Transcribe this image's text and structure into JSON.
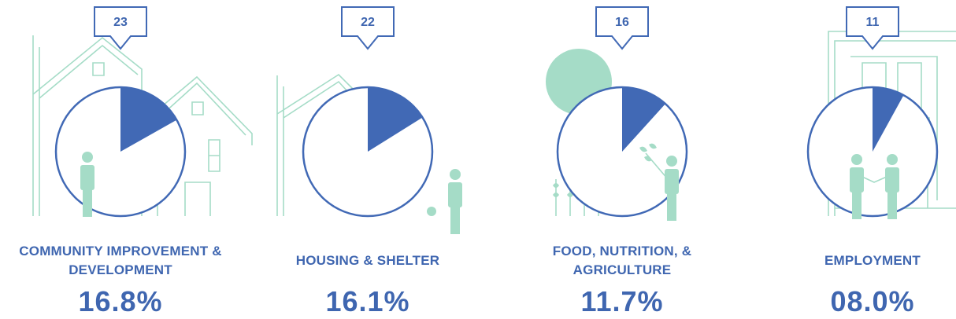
{
  "chart_data": {
    "type": "pie",
    "categories": [
      "COMMUNITY IMPROVEMENT & DEVELOPMENT",
      "HOUSING & SHELTER",
      "FOOD, NUTRITION, & AGRICULTURE",
      "EMPLOYMENT"
    ],
    "values": [
      16.8,
      16.1,
      11.7,
      8.0
    ],
    "value_labels": [
      "16.8%",
      "16.1%",
      "11.7%",
      "08.0%"
    ],
    "counts": [
      23,
      22,
      16,
      11
    ],
    "color": "#4169b5"
  }
}
